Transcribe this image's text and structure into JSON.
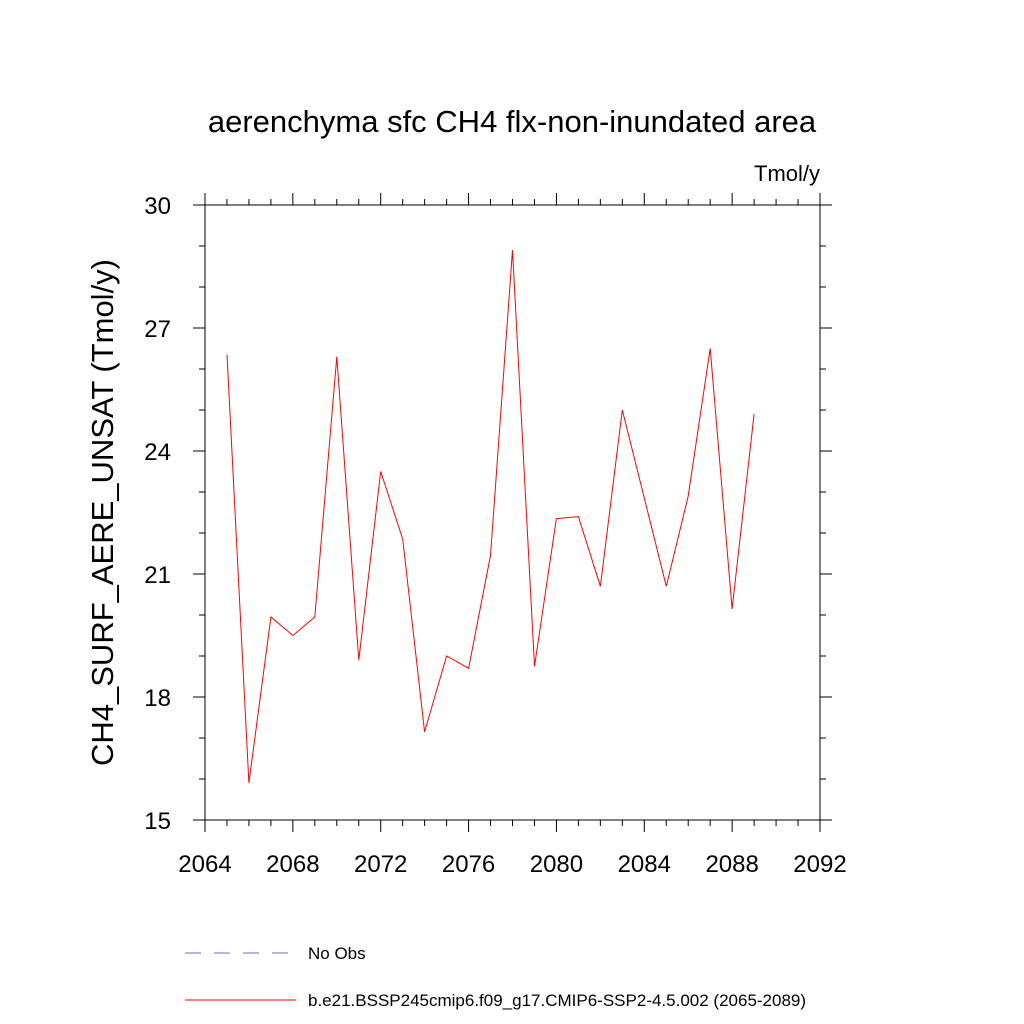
{
  "chart_data": {
    "type": "line",
    "title": "aerenchyma sfc CH4 flx-non-inundated area",
    "units": "Tmol/y",
    "ylabel": "CH4_SURF_AERE_UNSAT  (Tmol/y)",
    "xlabel": "",
    "xlim": [
      2064,
      2092
    ],
    "ylim": [
      15,
      30
    ],
    "xticks": [
      2064,
      2068,
      2072,
      2076,
      2080,
      2084,
      2088,
      2092
    ],
    "yticks": [
      15,
      18,
      21,
      24,
      27,
      30
    ],
    "grid": false,
    "legend_position": "bottom",
    "series": [
      {
        "name": "No Obs",
        "color": "#7b68c8",
        "dash": "dashed",
        "x": [],
        "y": []
      },
      {
        "name": "b.e21.BSSP245cmip6.f09_g17.CMIP6-SSP2-4.5.002 (2065-2089)",
        "color": "#ff0000",
        "dash": "solid",
        "x": [
          2065,
          2066,
          2067,
          2068,
          2069,
          2070,
          2071,
          2072,
          2073,
          2074,
          2075,
          2076,
          2077,
          2078,
          2079,
          2080,
          2081,
          2082,
          2083,
          2084,
          2085,
          2086,
          2087,
          2088,
          2089
        ],
        "y": [
          26.35,
          15.9,
          19.95,
          19.5,
          19.95,
          26.3,
          18.9,
          23.5,
          21.85,
          17.15,
          19.0,
          18.7,
          21.45,
          28.9,
          18.75,
          22.35,
          22.4,
          20.7,
          25.0,
          22.85,
          20.7,
          22.9,
          26.5,
          20.15,
          24.9
        ]
      }
    ]
  }
}
